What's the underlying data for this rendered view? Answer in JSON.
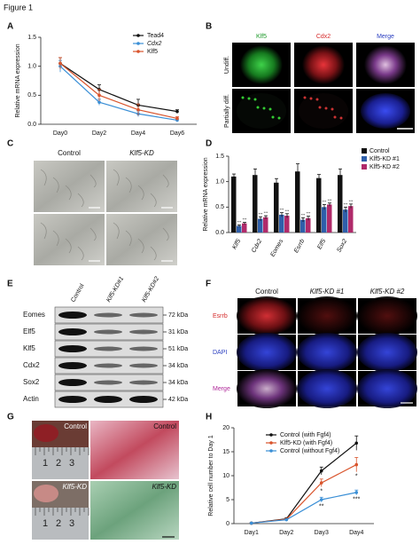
{
  "figure_title": "Figure 1",
  "panel_letters": [
    "A",
    "B",
    "C",
    "D",
    "E",
    "F",
    "G",
    "H"
  ],
  "chart_data": [
    {
      "type": "line",
      "ylabel": "Relative mRNA expression",
      "categories": [
        "Day0",
        "Day2",
        "Day4",
        "Day6"
      ],
      "ylim": [
        0,
        1.5
      ],
      "yticks": [
        {
          "value": 0,
          "label": "0.0"
        },
        0.5,
        {
          "value": 1,
          "label": "1.0"
        },
        1.5
      ],
      "series": [
        {
          "name": "Tead4",
          "color": "#111111",
          "values": [
            1.05,
            0.6,
            0.33,
            0.22
          ],
          "errors": [
            0.1,
            0.08,
            0.1,
            0.03
          ]
        },
        {
          "name": "Cdx2",
          "color": "#3a8fd6",
          "values": [
            1.0,
            0.38,
            0.18,
            0.07
          ],
          "errors": [
            0.1,
            0.05,
            0.05,
            0.02
          ]
        },
        {
          "name": "Klf5",
          "color": "#d9542c",
          "values": [
            1.05,
            0.5,
            0.25,
            0.1
          ],
          "errors": [
            0.1,
            0.1,
            0.1,
            0.03
          ]
        }
      ]
    },
    {
      "type": "bar",
      "ylabel": "Relative mRNA expression",
      "categories": [
        "Klf5",
        "Cdx2",
        "Eomes",
        "Esrrb",
        "Elf5",
        "Sox2"
      ],
      "ylim": [
        0,
        1.5
      ],
      "yticks": [
        {
          "value": 0,
          "label": "0.0"
        },
        0.5,
        {
          "value": 1,
          "label": "1.0"
        },
        1.5
      ],
      "series": [
        {
          "name": "Control",
          "color": "#111111",
          "values": [
            1.1,
            1.13,
            0.98,
            1.2,
            1.07,
            1.13
          ],
          "errors": [
            0.05,
            0.12,
            0.08,
            0.15,
            0.07,
            0.12
          ]
        },
        {
          "name": "Klf5-KD #1",
          "color": "#2f5faa",
          "values": [
            0.13,
            0.27,
            0.35,
            0.25,
            0.5,
            0.45
          ],
          "errors": [
            0.02,
            0.04,
            0.04,
            0.04,
            0.05,
            0.05
          ],
          "significance": [
            "***",
            "***",
            "***",
            "***",
            "***",
            "***"
          ]
        },
        {
          "name": "Klf5-KD #2",
          "color": "#b02a6a",
          "values": [
            0.18,
            0.3,
            0.33,
            0.28,
            0.55,
            0.52
          ],
          "errors": [
            0.02,
            0.03,
            0.04,
            0.04,
            0.03,
            0.04
          ],
          "significance": [
            "***",
            "***",
            "***",
            "***",
            "***",
            "***"
          ]
        }
      ]
    },
    {
      "type": "line",
      "ylabel": "Relative cell number to Day 1",
      "categories": [
        "Day1",
        "Day2",
        "Day3",
        "Day4"
      ],
      "ylim": [
        0,
        20
      ],
      "yticks": [
        0,
        5,
        10,
        15,
        20
      ],
      "series": [
        {
          "name": "Control (with Fgf4)",
          "color": "#111111",
          "values": [
            0.1,
            1.0,
            11,
            16.8
          ],
          "errors": [
            0.1,
            0.2,
            0.8,
            1.5
          ]
        },
        {
          "name": "Klf5-KD (with Fgf4)",
          "color": "#d9542c",
          "values": [
            0.1,
            0.9,
            8.5,
            12.3
          ],
          "errors": [
            0.1,
            0.2,
            0.8,
            1.5
          ],
          "significance": [
            null,
            null,
            "*",
            "*"
          ]
        },
        {
          "name": "Control (without Fgf4)",
          "color": "#3a8fd6",
          "values": [
            0.1,
            0.8,
            5,
            6.5
          ],
          "errors": [
            0.1,
            0.1,
            0.5,
            0.5
          ],
          "significance": [
            null,
            null,
            "**",
            "***"
          ]
        }
      ]
    }
  ],
  "panel_b": {
    "columns": [
      "Klf5",
      "Cdx2",
      "Merge"
    ],
    "rows": [
      "Undiff.",
      "Partially diff."
    ]
  },
  "panel_c": {
    "columns": [
      "Control",
      "Klf5-KD"
    ]
  },
  "panel_e": {
    "lanes": [
      "Control",
      "Klf5-KD#1",
      "Klf5-KD#2"
    ],
    "rows": [
      {
        "protein": "Eomes",
        "size": "72 kDa"
      },
      {
        "protein": "Elf5",
        "size": "31 kDa"
      },
      {
        "protein": "Klf5",
        "size": "51 kDa"
      },
      {
        "protein": "Cdx2",
        "size": "34 kDa"
      },
      {
        "protein": "Sox2",
        "size": "34 kDa"
      },
      {
        "protein": "Actin",
        "size": "42 kDa"
      }
    ]
  },
  "panel_f": {
    "columns": [
      "Control",
      "Klf5-KD #1",
      "Klf5-KD #2"
    ],
    "rows": [
      "Esrrb",
      "DAPI",
      "Merge"
    ]
  },
  "panel_g": {
    "labels": [
      "Control",
      "Control",
      "Klf5-KD",
      "Klf5-KD"
    ],
    "rulers": [
      [
        "1",
        "2",
        "3"
      ],
      [
        "1",
        "2",
        "3"
      ]
    ]
  }
}
